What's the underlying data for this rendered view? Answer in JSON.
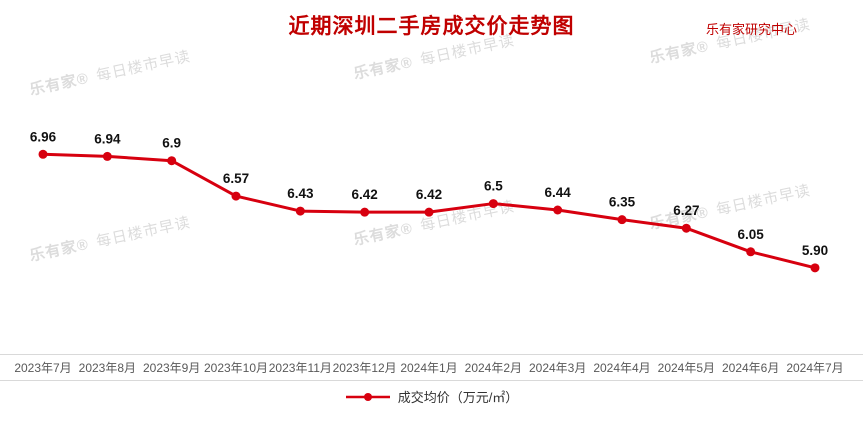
{
  "chart_data": {
    "type": "line",
    "title": "近期深圳二手房成交价走势图",
    "source": "乐有家研究中心",
    "legend": "成交均价（万元/㎡）",
    "legend_position": "bottom",
    "grid": false,
    "categories": [
      "2023年7月",
      "2023年8月",
      "2023年9月",
      "2023年10月",
      "2023年11月",
      "2023年12月",
      "2024年1月",
      "2024年2月",
      "2024年3月",
      "2024年4月",
      "2024年5月",
      "2024年6月",
      "2024年7月"
    ],
    "series": [
      {
        "name": "成交均价（万元/㎡）",
        "values": [
          6.96,
          6.94,
          6.9,
          6.57,
          6.43,
          6.42,
          6.42,
          6.5,
          6.44,
          6.35,
          6.27,
          6.05,
          5.9
        ]
      }
    ],
    "value_labels": [
      "6.96",
      "6.94",
      "6.9",
      "6.57",
      "6.43",
      "6.42",
      "6.42",
      "6.5",
      "6.44",
      "6.35",
      "6.27",
      "6.05",
      "5.90"
    ],
    "xlabel": "",
    "ylabel": "成交均价（万元/㎡）",
    "ylim": [
      5.6,
      7.0
    ],
    "line_color": "#d7000f"
  },
  "colors": {
    "title": "#c00000",
    "line": "#d7000f",
    "value_label": "#111111",
    "axis_label": "#595959",
    "watermark": "#dcdcdc"
  },
  "watermark": {
    "brand": "乐有家®",
    "text": "每日楼市早读"
  }
}
